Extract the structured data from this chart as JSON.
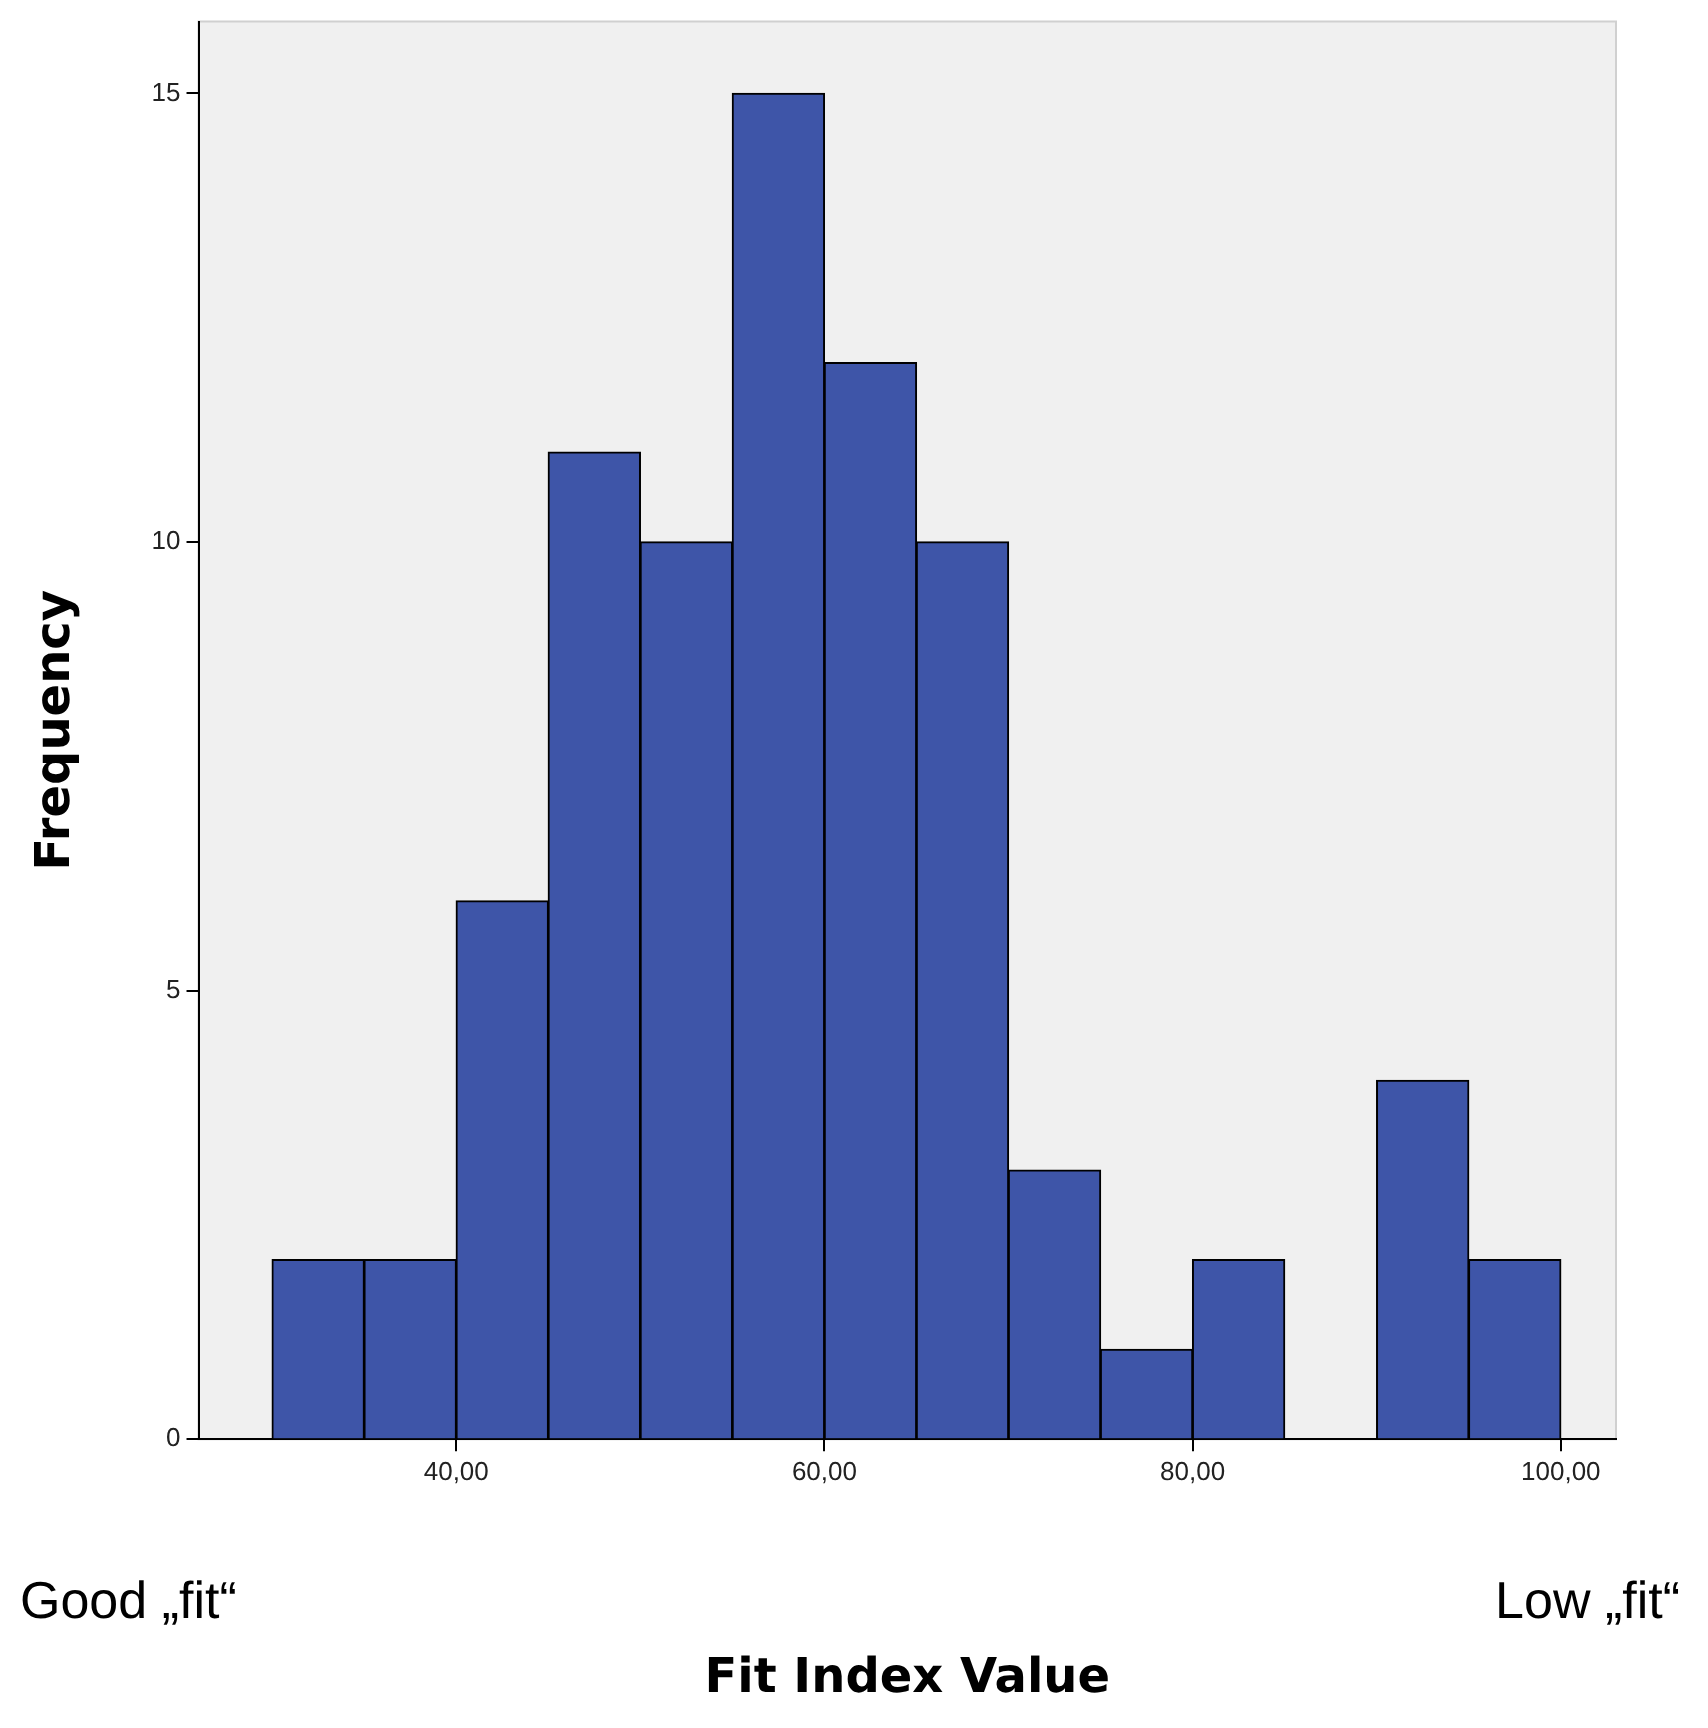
{
  "chart_data": {
    "type": "histogram",
    "xlabel": "Fit Index Value",
    "ylabel": "Frequency",
    "bins": [
      30,
      35,
      40,
      45,
      50,
      55,
      60,
      65,
      70,
      75,
      80,
      85,
      90,
      95,
      100
    ],
    "values": [
      2,
      2,
      6,
      11,
      10,
      15,
      12,
      10,
      3,
      1,
      2,
      0,
      4,
      2
    ],
    "color": "#3e55a8",
    "xlim": [
      26,
      103
    ],
    "xticks": [
      {
        "value": 40,
        "label": "40,00"
      },
      {
        "value": 60,
        "label": "60,00"
      },
      {
        "value": 80,
        "label": "80,00"
      },
      {
        "value": 100,
        "label": "100,00"
      }
    ],
    "ylim": [
      0,
      15.8
    ],
    "yticks": [
      0,
      5,
      10,
      15
    ],
    "grid": false,
    "legend": false,
    "annotations": [
      "Good „fit“",
      "Low „fit“"
    ]
  }
}
